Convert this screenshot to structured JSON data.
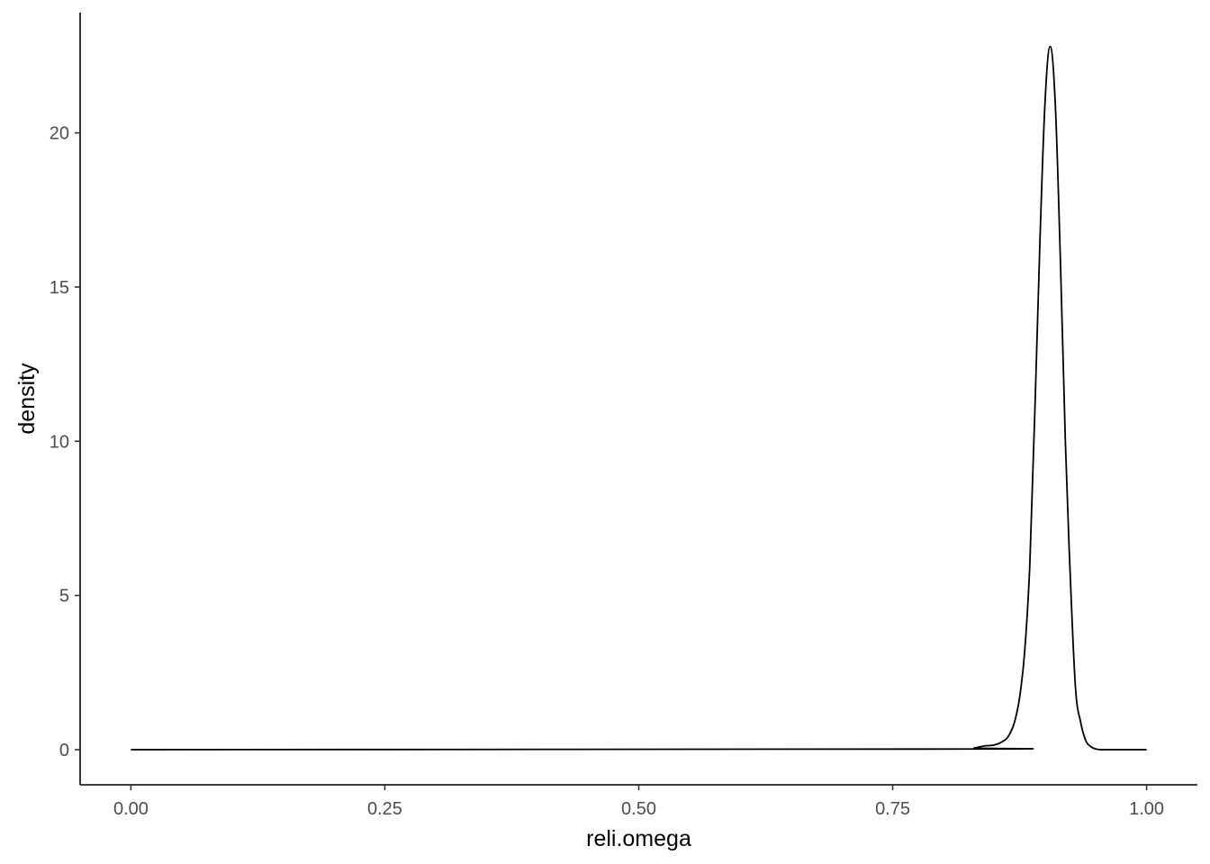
{
  "chart_data": {
    "type": "line",
    "title": "",
    "xlabel": "reli.omega",
    "ylabel": "density",
    "xlim": [
      -0.05,
      1.05
    ],
    "ylim": [
      -1.14,
      23.9
    ],
    "grid": false,
    "x_ticks": [
      {
        "value": 0.0,
        "label": "0.00"
      },
      {
        "value": 0.25,
        "label": "0.25"
      },
      {
        "value": 0.5,
        "label": "0.50"
      },
      {
        "value": 0.75,
        "label": "0.75"
      },
      {
        "value": 1.0,
        "label": "1.00"
      }
    ],
    "y_ticks": [
      {
        "value": 0,
        "label": "0"
      },
      {
        "value": 5,
        "label": "5"
      },
      {
        "value": 10,
        "label": "10"
      },
      {
        "value": 15,
        "label": "15"
      },
      {
        "value": 20,
        "label": "20"
      }
    ],
    "series": [
      {
        "x": [
          0.0,
          0.82,
          0.83,
          0.84,
          0.85,
          0.86,
          0.865,
          0.87,
          0.875,
          0.88,
          0.885,
          0.89,
          0.895,
          0.9,
          0.905,
          0.91,
          0.915,
          0.92,
          0.925,
          0.93,
          0.935,
          0.94,
          0.945,
          0.95,
          0.955,
          0.96,
          0.965,
          0.97,
          0.975,
          0.98,
          1.0
        ],
        "y": [
          0.0,
          0.02,
          0.05,
          0.12,
          0.15,
          0.3,
          0.5,
          0.9,
          1.7,
          3.2,
          6.0,
          11.0,
          16.5,
          21.0,
          22.8,
          21.0,
          16.0,
          10.0,
          5.5,
          2.0,
          0.9,
          0.3,
          0.1,
          0.02,
          0.0,
          0.0,
          0.0,
          0.0,
          0.0,
          0.0,
          0.0
        ]
      }
    ]
  }
}
